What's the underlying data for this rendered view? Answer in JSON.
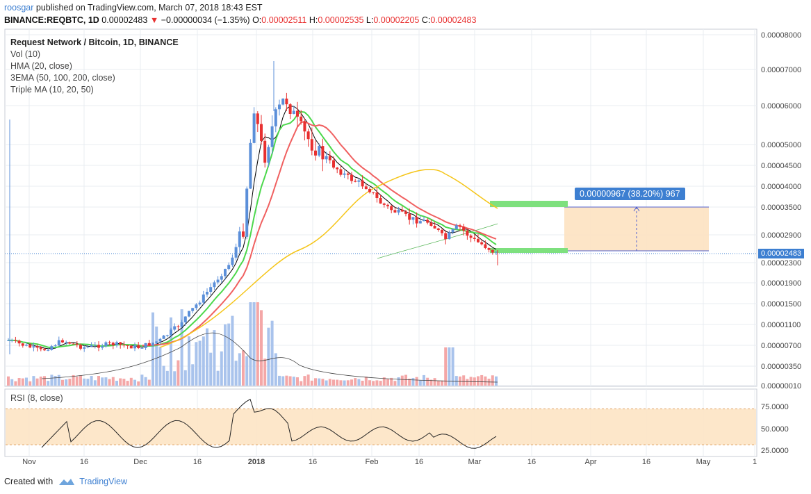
{
  "header": {
    "user": "roosgar",
    "published": "published on TradingView.com, March 07, 2018 18:43 EST",
    "symbol": "BINANCE:REQBTC, 1D",
    "last": "0.00002483",
    "change": "−0.00000034 (−1.35%)",
    "o_label": "O:",
    "o": "0.00002511",
    "h_label": "H:",
    "h": "0.00002535",
    "l_label": "L:",
    "l": "0.00002205",
    "c_label": "C:",
    "c": "0.00002483"
  },
  "legend": {
    "title": "Request Network / Bitcoin, 1D, BINANCE",
    "items": [
      "Vol (10)",
      "HMA (20, close)",
      "3EMA (50, 100, 200, close)",
      "Triple MA (10, 20, 50)"
    ]
  },
  "rsi": {
    "label": "RSI (8, close)",
    "ticks": [
      "75.0000",
      "50.0000",
      "25.0000"
    ],
    "band": [
      40,
      70
    ]
  },
  "measure": {
    "label": "0.00000967 (38.20%) 967"
  },
  "price_tag": "0.00002483",
  "footer": {
    "created": "Created with",
    "brand": "TradingView"
  },
  "colors": {
    "up": "#5b8fd9",
    "down": "#e83030",
    "ma_fast": "#000000",
    "ma_green": "#4cd84c",
    "ma_red": "#f06060",
    "ma_yellow": "#f5c518",
    "rsi_band": "#fde4c4",
    "measure": "#fde4c4",
    "green_zone": "#7ee07e"
  },
  "chart_data": {
    "type": "candlestick",
    "title": "Request Network / Bitcoin, 1D, BINANCE",
    "y_ticks": [
      "0.00008000",
      "0.00007000",
      "0.00006000",
      "0.00005000",
      "0.00004500",
      "0.00004000",
      "0.00003500",
      "0.00002900",
      "0.00002300",
      "0.00001900",
      "0.00001500",
      "0.00001100",
      "0.00000700",
      "0.00000350",
      "0.00000010"
    ],
    "x_ticks": [
      "Nov",
      "16",
      "Dec",
      "16",
      "2018",
      "16",
      "Feb",
      "16",
      "Mar",
      "16",
      "Apr",
      "16",
      "May",
      "1"
    ],
    "y_scale": "log",
    "current_price": 2.483e-05
  }
}
